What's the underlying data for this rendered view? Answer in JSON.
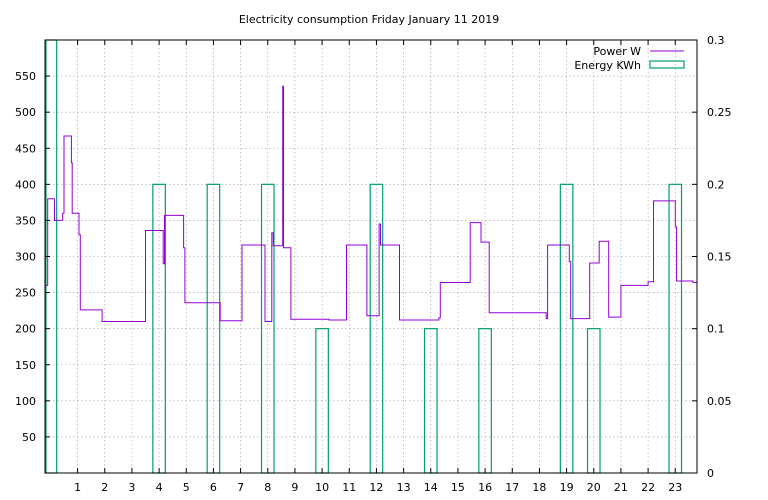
{
  "chart_data": {
    "type": "line",
    "title": "Electricity consumption Friday January 11 2019",
    "xlabel": "",
    "ylabel": "",
    "y2label": "",
    "xlim": [
      -0.2,
      23.8
    ],
    "ylim": [
      0,
      600
    ],
    "y2lim": [
      0,
      0.3
    ],
    "x_ticks": [
      1,
      2,
      3,
      4,
      5,
      6,
      7,
      8,
      9,
      10,
      11,
      12,
      13,
      14,
      15,
      16,
      17,
      18,
      19,
      20,
      21,
      22,
      23
    ],
    "y_ticks": [
      50,
      100,
      150,
      200,
      250,
      300,
      350,
      400,
      450,
      500,
      550
    ],
    "y2_ticks": [
      0,
      0.05,
      0.1,
      0.15,
      0.2,
      0.25,
      0.3
    ],
    "y2_tick_labels": [
      "0",
      "0.05",
      "0.1",
      "0.15",
      "0.2",
      "0.25",
      "0.3"
    ],
    "grid": true,
    "legend_position": "top-right",
    "series": [
      {
        "name": "Power W",
        "axis": "y",
        "color": "#9400d3",
        "style": "steps",
        "points": [
          [
            -0.2,
            260
          ],
          [
            -0.1,
            380
          ],
          [
            0.1,
            380
          ],
          [
            0.15,
            350
          ],
          [
            0.4,
            350
          ],
          [
            0.45,
            360
          ],
          [
            0.5,
            467
          ],
          [
            0.75,
            467
          ],
          [
            0.77,
            430
          ],
          [
            0.8,
            360
          ],
          [
            1.0,
            360
          ],
          [
            1.05,
            330
          ],
          [
            1.1,
            226
          ],
          [
            1.85,
            226
          ],
          [
            1.9,
            210
          ],
          [
            3.45,
            210
          ],
          [
            3.5,
            336
          ],
          [
            4.1,
            336
          ],
          [
            4.15,
            290
          ],
          [
            4.2,
            357
          ],
          [
            4.85,
            357
          ],
          [
            4.9,
            312
          ],
          [
            4.95,
            236
          ],
          [
            6.2,
            236
          ],
          [
            6.25,
            211
          ],
          [
            7.0,
            211
          ],
          [
            7.05,
            316
          ],
          [
            7.85,
            316
          ],
          [
            7.9,
            210
          ],
          [
            8.1,
            210
          ],
          [
            8.15,
            333
          ],
          [
            8.2,
            315
          ],
          [
            8.5,
            315
          ],
          [
            8.55,
            536
          ],
          [
            8.58,
            312
          ],
          [
            8.8,
            312
          ],
          [
            8.85,
            213
          ],
          [
            10.2,
            213
          ],
          [
            10.25,
            212
          ],
          [
            10.85,
            212
          ],
          [
            10.9,
            316
          ],
          [
            11.6,
            316
          ],
          [
            11.65,
            218
          ],
          [
            12.05,
            218
          ],
          [
            12.1,
            345
          ],
          [
            12.15,
            316
          ],
          [
            12.75,
            316
          ],
          [
            12.85,
            212
          ],
          [
            14.2,
            212
          ],
          [
            14.3,
            215
          ],
          [
            14.35,
            264
          ],
          [
            15.4,
            264
          ],
          [
            15.45,
            347
          ],
          [
            15.8,
            347
          ],
          [
            15.85,
            320
          ],
          [
            16.1,
            320
          ],
          [
            16.15,
            222
          ],
          [
            18.2,
            222
          ],
          [
            18.25,
            214
          ],
          [
            18.3,
            316
          ],
          [
            19.05,
            316
          ],
          [
            19.1,
            293
          ],
          [
            19.15,
            214
          ],
          [
            19.8,
            214
          ],
          [
            19.85,
            291
          ],
          [
            20.15,
            291
          ],
          [
            20.2,
            321
          ],
          [
            20.5,
            321
          ],
          [
            20.55,
            216
          ],
          [
            20.95,
            216
          ],
          [
            21.0,
            260
          ],
          [
            21.95,
            260
          ],
          [
            22.0,
            265
          ],
          [
            22.2,
            377
          ],
          [
            22.95,
            377
          ],
          [
            23.0,
            341
          ],
          [
            23.05,
            266
          ],
          [
            23.6,
            266
          ],
          [
            23.65,
            264
          ],
          [
            23.8,
            264
          ]
        ]
      },
      {
        "name": "Energy KWh",
        "axis": "y2",
        "color": "#009e73",
        "style": "bars",
        "bars": [
          {
            "x": 0,
            "value": 0.3
          },
          {
            "x": 4,
            "value": 0.2
          },
          {
            "x": 6,
            "value": 0.2
          },
          {
            "x": 8,
            "value": 0.2
          },
          {
            "x": 10,
            "value": 0.1
          },
          {
            "x": 12,
            "value": 0.2
          },
          {
            "x": 14,
            "value": 0.1
          },
          {
            "x": 16,
            "value": 0.1
          },
          {
            "x": 19,
            "value": 0.2
          },
          {
            "x": 20,
            "value": 0.1
          },
          {
            "x": 23,
            "value": 0.2
          }
        ]
      }
    ]
  }
}
